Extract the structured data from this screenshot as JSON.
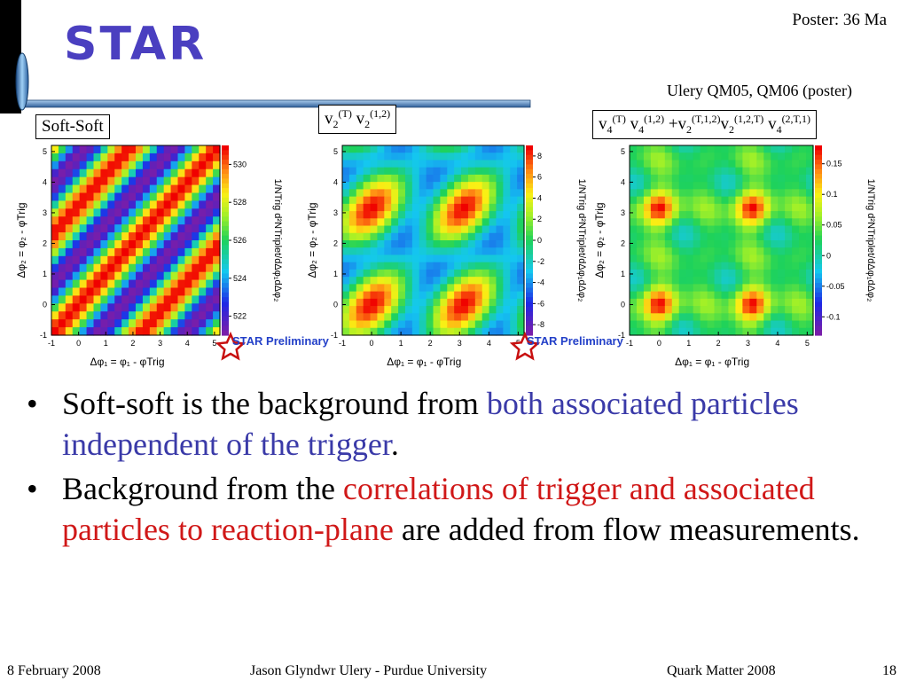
{
  "header": {
    "title": "STAR",
    "poster_note": "Poster: 36 Ma",
    "reference": "Ulery QM05, QM06 (poster)"
  },
  "figures": {
    "panel1_label": "Soft-Soft",
    "panel2_label": {
      "base1": "v",
      "sub1": "2",
      "sup1": "(T)",
      "base2": " v",
      "sub2": "2",
      "sup2": "(1,2)"
    },
    "panel3_label": {
      "p1": "v",
      "s1": "4",
      "u1": "(T)",
      "p2": " v",
      "s2": "4",
      "u2": "(1,2)",
      "p3": " +v",
      "s3": "2",
      "u3": "(T,1,2)",
      "p4": "v",
      "s4": "2",
      "u4": "(1,2,T)",
      "p5": " v",
      "s5": "4",
      "u5": "(2,T,1)"
    },
    "preliminary": "STAR Preliminary",
    "x_axis": "Δφ₁ = φ₁ - φTrig",
    "y_axis": "Δφ₂ = φ₂ - φTrig",
    "z_axis": "1/NTrig d²NTriplet/dΔφ₁dΔφ₂",
    "x_ticks": [
      "-1",
      "0",
      "1",
      "2",
      "3",
      "4",
      "5"
    ],
    "y_ticks": [
      "-1",
      "0",
      "1",
      "2",
      "3",
      "4",
      "5"
    ]
  },
  "chart_data": [
    {
      "type": "heatmap",
      "title": "Soft-Soft",
      "x_range": [
        -1,
        5.2
      ],
      "y_range": [
        -1,
        5.2
      ],
      "z_ticks": [
        "522",
        "524",
        "526",
        "528",
        "530"
      ],
      "z_range": [
        521,
        531
      ],
      "pattern": "diagonal band along Δφ₁ = Δφ₂"
    },
    {
      "type": "heatmap",
      "title": "v2(T) v2(1,2)",
      "x_range": [
        -1,
        5.2
      ],
      "y_range": [
        -1,
        5.2
      ],
      "z_ticks": [
        "-8",
        "-6",
        "-4",
        "-2",
        "0",
        "2",
        "4",
        "6",
        "8"
      ],
      "z_range": [
        -9,
        9
      ],
      "pattern": "maxima at (0,0),(π,0),(0,π),(π,π); minima at (π/2,π/2) type points"
    },
    {
      "type": "heatmap",
      "title": "v4(T) v4(1,2) +v2(T,1,2)v2(1,2,T) v4(2,T,1)",
      "x_range": [
        -1,
        5.2
      ],
      "y_range": [
        -1,
        5.2
      ],
      "z_ticks": [
        "-0.1",
        "-0.05",
        "0",
        "0.05",
        "0.1",
        "0.15"
      ],
      "z_range": [
        -0.13,
        0.18
      ],
      "pattern": "fourfold pattern with peaks at (0,0),(π,0),(0,π),(π,π)"
    }
  ],
  "bullets": {
    "b1_a": "Soft-soft is the background from ",
    "b1_b": "both associated particles independent of the trigger",
    "b1_c": ".",
    "b2_a": " Background from the ",
    "b2_b": "correlations of trigger and associated particles to reaction-plane",
    "b2_c": " are added from flow measurements."
  },
  "footer": {
    "date": "8 February 2008",
    "author": "Jason Glyndwr Ulery - Purdue University",
    "conference": "Quark Matter 2008",
    "page": "18"
  },
  "colors": {
    "title": "#4a3fc0",
    "blue_text": "#3a3aa8",
    "red_text": "#d01818",
    "rule": "#3f6fa8"
  }
}
